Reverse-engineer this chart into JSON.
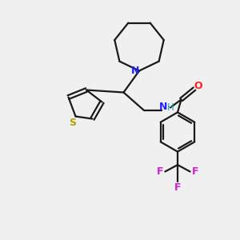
{
  "background_color": "#f0f0f0",
  "bond_color": "#1a1a1a",
  "N_color": "#2020ff",
  "O_color": "#ff2020",
  "S_color": "#b8a000",
  "F_color": "#d020d0",
  "H_color": "#20a0a0",
  "figsize": [
    3.0,
    3.0
  ],
  "dpi": 100,
  "xlim": [
    0,
    10
  ],
  "ylim": [
    0,
    10
  ]
}
